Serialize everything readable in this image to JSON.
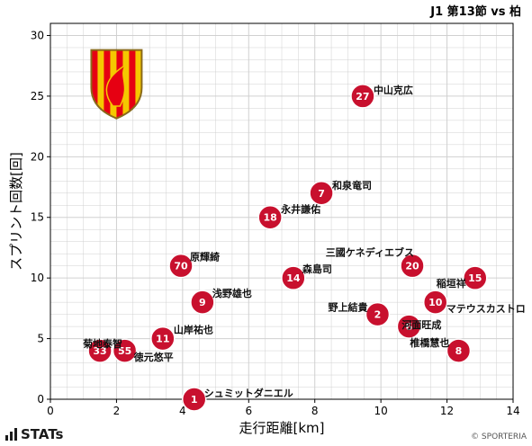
{
  "header": {
    "match": "J1 第13節 vs 柏"
  },
  "branding": {
    "stats_logo": "STATs",
    "copyright": "© SPORTERIA"
  },
  "emblem": {
    "icon": "club-crest-phoenix-icon",
    "colors": {
      "red": "#e60012",
      "yellow": "#f5c800",
      "outline": "#8a6a1a"
    }
  },
  "colors": {
    "marker": "#c8102e",
    "marker_stroke": "#ffffff",
    "grid": "#d0d0d0",
    "axis": "#000000"
  },
  "chart_data": {
    "type": "scatter",
    "xlabel": "走行距離[km]",
    "ylabel": "スプリント回数[回]",
    "xlim": [
      0,
      14
    ],
    "ylim": [
      0,
      31
    ],
    "xticks": [
      0,
      2,
      4,
      6,
      8,
      10,
      12,
      14
    ],
    "yticks": [
      0,
      5,
      10,
      15,
      20,
      25,
      30
    ],
    "grid": true,
    "points": [
      {
        "number": "27",
        "name": "中山克広",
        "x": 9.45,
        "y": 25
      },
      {
        "number": "7",
        "name": "和泉竜司",
        "x": 8.2,
        "y": 17
      },
      {
        "number": "18",
        "name": "永井謙佑",
        "x": 6.65,
        "y": 15
      },
      {
        "number": "70",
        "name": "原輝綺",
        "x": 3.95,
        "y": 11
      },
      {
        "number": "14",
        "name": "森島司",
        "x": 7.35,
        "y": 10
      },
      {
        "number": "20",
        "name": "三國ケネディエブス",
        "x": 10.95,
        "y": 11
      },
      {
        "number": "15",
        "name": "稲垣祥",
        "x": 12.85,
        "y": 10
      },
      {
        "number": "10",
        "name": "マテウスカストロ",
        "x": 11.65,
        "y": 8
      },
      {
        "number": "9",
        "name": "浅野雄也",
        "x": 4.6,
        "y": 8
      },
      {
        "number": "2",
        "name": "野上結貴",
        "x": 9.9,
        "y": 7
      },
      {
        "number": "6",
        "name": "河面旺成",
        "x": 10.85,
        "y": 6
      },
      {
        "number": "11",
        "name": "山岸祐也",
        "x": 3.4,
        "y": 5
      },
      {
        "number": "8",
        "name": "椎橋慧也",
        "x": 12.35,
        "y": 4
      },
      {
        "number": "33",
        "name": "菊地泰智",
        "x": 1.5,
        "y": 4
      },
      {
        "number": "55",
        "name": "徳元悠平",
        "x": 2.25,
        "y": 4
      },
      {
        "number": "1",
        "name": "シュミットダニエル",
        "x": 4.35,
        "y": 0
      }
    ]
  }
}
